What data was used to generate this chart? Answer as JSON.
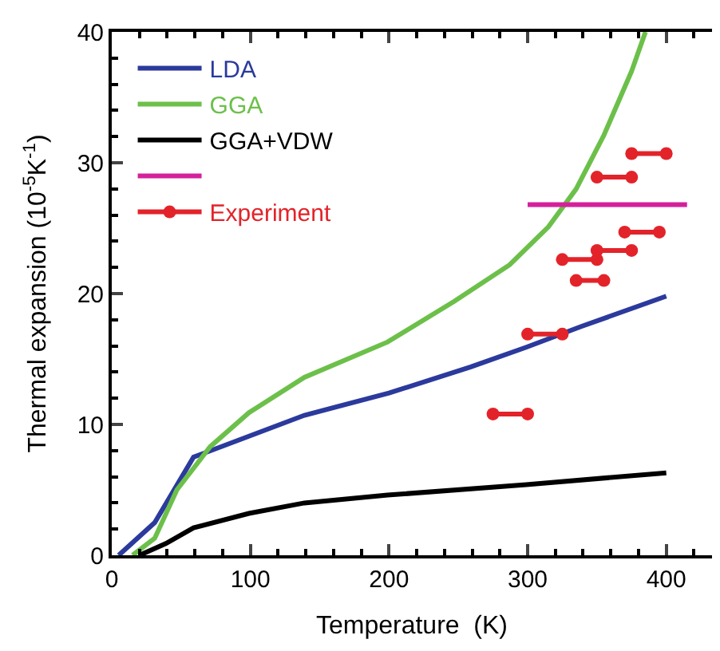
{
  "chart_data": {
    "type": "line",
    "xlabel": "Temperature  (K)",
    "ylabel": "Thermal expansion (10$^{-5}$K$^{-1}$)",
    "xlim": [
      0,
      433
    ],
    "ylim": [
      0,
      40
    ],
    "xticks": [
      0,
      100,
      200,
      300,
      400
    ],
    "yticks": [
      0,
      10,
      20,
      30,
      40
    ],
    "legend": "top left",
    "marker": "none",
    "line_style": "solid",
    "series": [
      {
        "name": "LDA",
        "color": "#2b3a9c",
        "x": [
          5,
          31,
          59,
          99,
          139,
          200,
          259,
          299,
          339,
          400
        ],
        "values": [
          0,
          2.5,
          7.5,
          9.1,
          10.7,
          12.4,
          14.4,
          15.9,
          17.5,
          19.8
        ]
      },
      {
        "name": "GGA",
        "color": "#6cc04a",
        "x": [
          15,
          31,
          47,
          71,
          99,
          139,
          199,
          247,
          287,
          315,
          335,
          355,
          375,
          385
        ],
        "values": [
          0,
          1.3,
          5.0,
          8.3,
          10.9,
          13.6,
          16.3,
          19.4,
          22.2,
          25.1,
          28.0,
          32.1,
          37.0,
          40
        ]
      },
      {
        "name": "GGA+VDW",
        "color": "#000000",
        "x": [
          20,
          39,
          59,
          99,
          139,
          199,
          299,
          400
        ],
        "values": [
          0,
          0.9,
          2.1,
          3.2,
          4.0,
          4.6,
          5.4,
          6.3
        ]
      },
      {
        "color": "#d4219b",
        "x": [
          300,
          415
        ],
        "values": [
          26.8,
          26.8
        ]
      },
      {
        "name": "Experiment",
        "color": "#e3232a",
        "marker": "circle",
        "x": [
          375,
          400
        ],
        "values": [
          30.7,
          30.7
        ]
      },
      {
        "color": "#e3232a",
        "marker": "circle",
        "x": [
          350,
          375
        ],
        "values": [
          28.9,
          28.9
        ]
      },
      {
        "color": "#e3232a",
        "marker": "circle",
        "x": [
          370,
          395
        ],
        "values": [
          24.7,
          24.7
        ]
      },
      {
        "color": "#e3232a",
        "marker": "circle",
        "x": [
          350,
          375
        ],
        "values": [
          23.3,
          23.3
        ]
      },
      {
        "color": "#e3232a",
        "marker": "circle",
        "x": [
          325,
          350
        ],
        "values": [
          22.6,
          22.6
        ]
      },
      {
        "color": "#e3232a",
        "marker": "circle",
        "x": [
          335,
          355
        ],
        "values": [
          21.0,
          21.0
        ]
      },
      {
        "color": "#e3232a",
        "marker": "circle",
        "x": [
          300,
          325
        ],
        "values": [
          16.9,
          16.9
        ]
      },
      {
        "color": "#e3232a",
        "marker": "circle",
        "x": [
          275,
          300
        ],
        "values": [
          10.8,
          10.8
        ]
      }
    ]
  }
}
